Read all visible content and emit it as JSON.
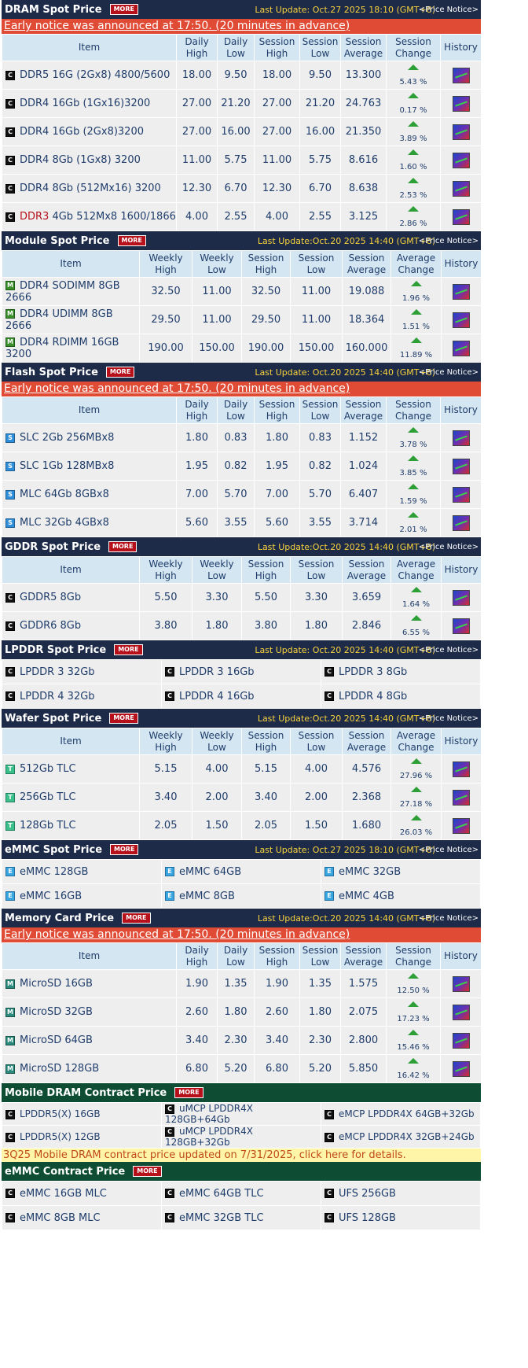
{
  "dram": {
    "title": "DRAM Spot Price",
    "more": "MORE",
    "last_update": "Last Update: Oct.27 2025 18:10 (GMT+8)",
    "notice": "<Price Notice>",
    "early": "Early notice was announced at 17:50. (20 minutes in advance)",
    "headers": [
      "Item",
      "Daily High",
      "Daily Low",
      "Session High",
      "Session Low",
      "Session Average",
      "Session Change",
      "History"
    ],
    "rows": [
      {
        "item": "DDR5 16G (2Gx8) 4800/5600",
        "v": [
          "18.00",
          "9.50",
          "18.00",
          "9.50",
          "13.300"
        ],
        "change": "5.43 %"
      },
      {
        "item": "DDR4 16Gb (1Gx16)3200",
        "v": [
          "27.00",
          "21.20",
          "27.00",
          "21.20",
          "24.763"
        ],
        "change": "0.17 %"
      },
      {
        "item": "DDR4 16Gb (2Gx8)3200",
        "v": [
          "27.00",
          "16.00",
          "27.00",
          "16.00",
          "21.350"
        ],
        "change": "3.89 %"
      },
      {
        "item": "DDR4 8Gb (1Gx8) 3200",
        "v": [
          "11.00",
          "5.75",
          "11.00",
          "5.75",
          "8.616"
        ],
        "change": "1.60 %"
      },
      {
        "item": "DDR4 8Gb (512Mx16) 3200",
        "v": [
          "12.30",
          "6.70",
          "12.30",
          "6.70",
          "8.638"
        ],
        "change": "2.53 %"
      },
      {
        "prefix": "DDR3",
        "item": " 4Gb 512Mx8 1600/1866",
        "v": [
          "4.00",
          "2.55",
          "4.00",
          "2.55",
          "3.125"
        ],
        "change": "2.86 %"
      }
    ]
  },
  "module": {
    "title": "Module Spot Price",
    "more": "MORE",
    "last_update": "Last Update:Oct.20 2025 14:40 (GMT+8)",
    "notice": "<Price Notice>",
    "headers": [
      "Item",
      "Weekly High",
      "Weekly Low",
      "Session High",
      "Session Low",
      "Session Average",
      "Average Change",
      "History"
    ],
    "rows": [
      {
        "item": "DDR4 SODIMM 8GB 2666",
        "v": [
          "32.50",
          "11.00",
          "32.50",
          "11.00",
          "19.088"
        ],
        "change": "1.96 %"
      },
      {
        "item": "DDR4 UDIMM 8GB 2666",
        "v": [
          "29.50",
          "11.00",
          "29.50",
          "11.00",
          "18.364"
        ],
        "change": "1.51 %"
      },
      {
        "item": "DDR4 RDIMM 16GB 3200",
        "v": [
          "190.00",
          "150.00",
          "190.00",
          "150.00",
          "160.000"
        ],
        "change": "11.89 %"
      }
    ]
  },
  "flash": {
    "title": "Flash Spot Price",
    "more": "MORE",
    "last_update": "Last Update: Oct.20 2025 14:40 (GMT+8)",
    "notice": "<Price Notice>",
    "early": "Early notice was announced at 17:50. (20 minutes in advance)",
    "headers": [
      "Item",
      "Daily High",
      "Daily Low",
      "Session High",
      "Session Low",
      "Session Average",
      "Session Change",
      "History"
    ],
    "rows": [
      {
        "item": "SLC 2Gb 256MBx8",
        "v": [
          "1.80",
          "0.83",
          "1.80",
          "0.83",
          "1.152"
        ],
        "change": "3.78 %"
      },
      {
        "item": "SLC 1Gb 128MBx8",
        "v": [
          "1.95",
          "0.82",
          "1.95",
          "0.82",
          "1.024"
        ],
        "change": "3.85 %"
      },
      {
        "item": "MLC 64Gb 8GBx8",
        "v": [
          "7.00",
          "5.70",
          "7.00",
          "5.70",
          "6.407"
        ],
        "change": "1.59 %"
      },
      {
        "item": "MLC 32Gb 4GBx8",
        "v": [
          "5.60",
          "3.55",
          "5.60",
          "3.55",
          "3.714"
        ],
        "change": "2.01 %"
      }
    ]
  },
  "gddr": {
    "title": "GDDR Spot Price",
    "more": "MORE",
    "last_update": "Last Update:Oct.20 2025 14:40 (GMT+8)",
    "notice": "<Price Notice>",
    "headers": [
      "Item",
      "Weekly High",
      "Weekly Low",
      "Session High",
      "Session Low",
      "Session Average",
      "Average Change",
      "History"
    ],
    "rows": [
      {
        "item": "GDDR5 8Gb",
        "v": [
          "5.50",
          "3.30",
          "5.50",
          "3.30",
          "3.659"
        ],
        "change": "1.64 %"
      },
      {
        "item": "GDDR6 8Gb",
        "v": [
          "3.80",
          "1.80",
          "3.80",
          "1.80",
          "2.846"
        ],
        "change": "6.55 %"
      }
    ]
  },
  "lpddr": {
    "title": "LPDDR Spot Price",
    "more": "MORE",
    "last_update": "Last Update: Oct.20 2025 14:40 (GMT+8)",
    "notice": "<Price Notice>",
    "links": [
      [
        "LPDDR 3 32Gb",
        "LPDDR 3 16Gb",
        "LPDDR 3 8Gb"
      ],
      [
        "LPDDR 4 32Gb",
        "LPDDR 4 16Gb",
        "LPDDR 4 8Gb"
      ]
    ]
  },
  "wafer": {
    "title": "Wafer Spot Price",
    "more": "MORE",
    "last_update": "Last Update:Oct.20 2025 14:40 (GMT+8)",
    "notice": "<Price Notice>",
    "headers": [
      "Item",
      "Weekly High",
      "Weekly Low",
      "Session High",
      "Session Low",
      "Session Average",
      "Average Change",
      "History"
    ],
    "rows": [
      {
        "item": "512Gb TLC",
        "v": [
          "5.15",
          "4.00",
          "5.15",
          "4.00",
          "4.576"
        ],
        "change": "27.96 %"
      },
      {
        "item": "256Gb TLC",
        "v": [
          "3.40",
          "2.00",
          "3.40",
          "2.00",
          "2.368"
        ],
        "change": "27.18 %"
      },
      {
        "item": "128Gb TLC",
        "v": [
          "2.05",
          "1.50",
          "2.05",
          "1.50",
          "1.680"
        ],
        "change": "26.03 %"
      }
    ]
  },
  "emmc": {
    "title": "eMMC Spot Price",
    "more": "MORE",
    "last_update": "Last Update: Oct.27 2025 18:10 (GMT+8)",
    "notice": "<Price Notice>",
    "links": [
      [
        "eMMC 128GB",
        "eMMC 64GB",
        "eMMC 32GB"
      ],
      [
        "eMMC 16GB",
        "eMMC 8GB",
        "eMMC 4GB"
      ]
    ]
  },
  "memcard": {
    "title": "Memory Card Price",
    "more": "MORE",
    "last_update": "Last Update:Oct.20 2025 14:40 (GMT+8)",
    "notice": "<Price Notice>",
    "early": "Early notice was announced at 17:50. (20 minutes in advance)",
    "headers": [
      "Item",
      "Daily High",
      "Daily Low",
      "Session High",
      "Session Low",
      "Session Average",
      "Session Change",
      "History"
    ],
    "rows": [
      {
        "item": "MicroSD 16GB",
        "v": [
          "1.90",
          "1.35",
          "1.90",
          "1.35",
          "1.575"
        ],
        "change": "12.50 %"
      },
      {
        "item": "MicroSD 32GB",
        "v": [
          "2.60",
          "1.80",
          "2.60",
          "1.80",
          "2.075"
        ],
        "change": "17.23 %"
      },
      {
        "item": "MicroSD 64GB",
        "v": [
          "3.40",
          "2.30",
          "3.40",
          "2.30",
          "2.800"
        ],
        "change": "15.46 %"
      },
      {
        "item": "MicroSD 128GB",
        "v": [
          "6.80",
          "5.20",
          "6.80",
          "5.20",
          "5.850"
        ],
        "change": "16.42 %"
      }
    ]
  },
  "mobile_contract": {
    "title": "Mobile DRAM Contract Price",
    "more": "MORE",
    "links": [
      [
        "LPDDR5(X) 16GB",
        "uMCP LPDDR4X 128GB+64Gb",
        "eMCP LPDDR4X 64GB+32Gb"
      ],
      [
        "LPDDR5(X) 12GB",
        "uMCP LPDDR4X 128GB+32Gb",
        "eMCP LPDDR4X 32GB+24Gb"
      ]
    ],
    "notice": "3Q25 Mobile DRAM contract price updated on 7/31/2025, click here for details."
  },
  "emmc_contract": {
    "title": "eMMC Contract Price",
    "more": "MORE",
    "links": [
      [
        "eMMC 16GB MLC",
        "eMMC 64GB TLC",
        "UFS 256GB"
      ],
      [
        "eMMC 8GB MLC",
        "eMMC 32GB TLC",
        "UFS 128GB"
      ]
    ]
  }
}
